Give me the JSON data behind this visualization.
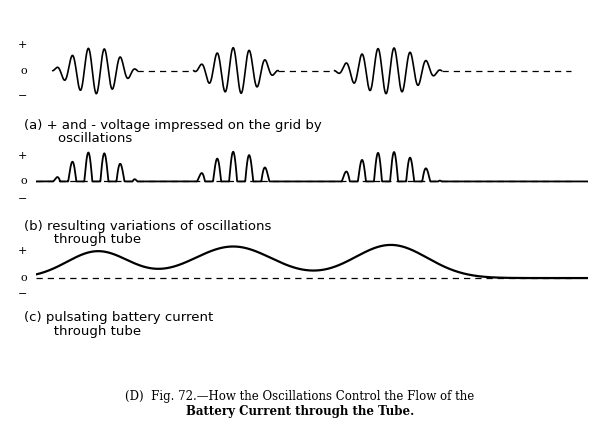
{
  "bg_color": "#ffffff",
  "line_color": "#000000",
  "panel_a_line1": "(a) + and - voltage impressed on the grid by",
  "panel_a_line2": "        oscillations",
  "panel_b_line1": "(b) resulting variations of oscillations",
  "panel_b_line2": "       through tube",
  "panel_c_line1": "(c) pulsating battery current",
  "panel_c_line2": "       through tube",
  "caption_part1": "(D)  Fig. 72.—How the Oscillations Control the Flow of the",
  "caption_part2": "Battery Current through the Tube.",
  "font_size_label": 9.5,
  "font_size_caption": 8.5,
  "font_size_sym": 8
}
